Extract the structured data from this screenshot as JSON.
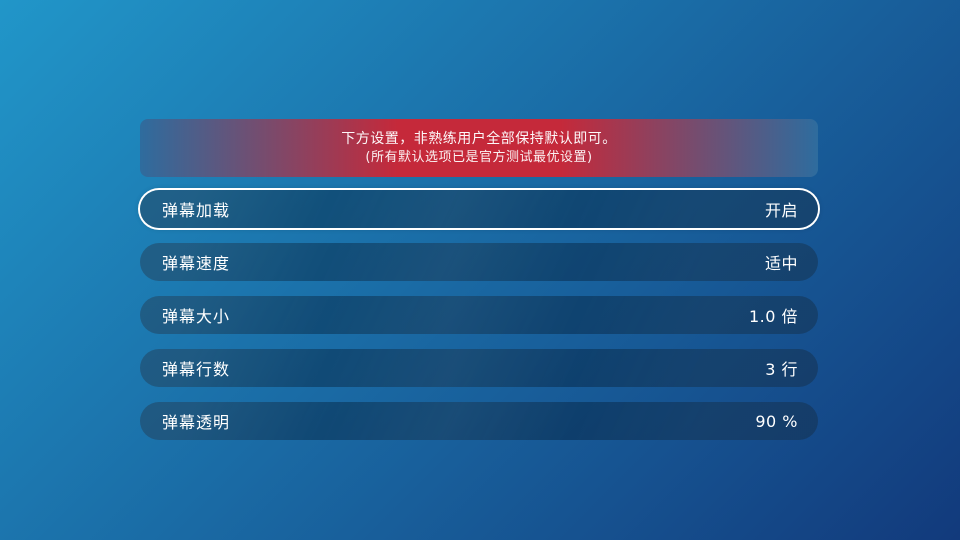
{
  "banner": {
    "line1": "下方设置，非熟练用户全部保持默认即可。",
    "line2": "(所有默认选项已是官方测试最优设置)"
  },
  "settings": [
    {
      "label": "弹幕加载",
      "value": "开启",
      "focused": true
    },
    {
      "label": "弹幕速度",
      "value": "适中",
      "focused": false
    },
    {
      "label": "弹幕大小",
      "value": "1.0 倍",
      "focused": false
    },
    {
      "label": "弹幕行数",
      "value": "3 行",
      "focused": false
    },
    {
      "label": "弹幕透明",
      "value": "90 %",
      "focused": false
    }
  ],
  "colors": {
    "bg_top_left": "#2196C9",
    "bg_bottom_right": "#123A7C",
    "banner_red": "#C5293A",
    "banner_edge_blue": "#2E6C9E",
    "row_overlay": "rgba(2,24,48,0.40)",
    "focus_border": "#FFFFFF",
    "text_color": "#FFFFFF"
  }
}
